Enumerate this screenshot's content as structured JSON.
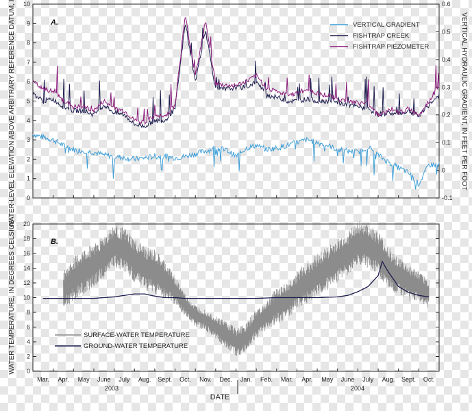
{
  "chart_data": [
    {
      "panel": "A.",
      "type": "line",
      "ylabel": "WATER-LEVEL ELEVATION ABOVE ARBITRARY REFERENCE DATUM, IN FEET",
      "y2label": "VERTICAL HYDRAULIC GRADIENT, IN FEET PER FOOT",
      "ylim": [
        0,
        10
      ],
      "y2lim": [
        -0.1,
        0.6
      ],
      "yticks": [
        "0",
        "1",
        "2",
        "3",
        "4",
        "5",
        "6",
        "7",
        "8",
        "9",
        "10"
      ],
      "y2ticks": [
        "-0.1",
        "0",
        "0.1",
        "0.2",
        "0.3",
        "0.4",
        "0.5",
        "0.6"
      ],
      "legend": [
        "VERTICAL GRADIENT",
        "FISHTRAP CREEK",
        "FISHTRAP PIEZOMETER"
      ],
      "series": [
        {
          "name": "VERTICAL GRADIENT",
          "axis": "right",
          "color": "#3f9fd8",
          "x": [
            0,
            0.5,
            1,
            1.5,
            2,
            2.5,
            3,
            3.5,
            4,
            4.5,
            5,
            5.5,
            6,
            6.5,
            7,
            7.5,
            8,
            8.5,
            9,
            9.5,
            10,
            10.5,
            11,
            11.5,
            12,
            12.5,
            13,
            13.5,
            14,
            14.5,
            15,
            15.5,
            16,
            16.5,
            17,
            17.5,
            18,
            18.5,
            19,
            19.5,
            20
          ],
          "values": [
            0.13,
            0.12,
            0.11,
            0.09,
            0.075,
            0.07,
            0.065,
            0.055,
            0.05,
            0.045,
            0.04,
            0.045,
            0.05,
            0.05,
            0.045,
            0.05,
            0.06,
            0.07,
            0.08,
            0.075,
            0.05,
            0.08,
            0.09,
            0.075,
            0.08,
            0.09,
            0.1,
            0.11,
            0.1,
            0.09,
            0.075,
            0.07,
            0.065,
            0.085,
            0.055,
            0.03,
            0.01,
            -0.01,
            -0.05,
            0.02,
            0.02
          ]
        },
        {
          "name": "FISHTRAP CREEK",
          "axis": "left",
          "color": "#1c1c4e",
          "x": [
            0,
            0.5,
            1,
            1.5,
            2,
            2.5,
            3,
            3.5,
            4,
            4.5,
            5,
            5.5,
            6,
            6.5,
            7,
            7.5,
            8,
            8.5,
            9,
            9.5,
            10,
            10.5,
            11,
            11.5,
            12,
            12.5,
            13,
            13.5,
            14,
            14.5,
            15,
            15.5,
            16,
            16.5,
            17,
            17.5,
            18,
            18.5,
            19,
            19.5,
            20
          ],
          "values": [
            5.4,
            5.0,
            5.1,
            4.7,
            4.5,
            4.5,
            4.3,
            4.8,
            4.4,
            4.3,
            3.8,
            3.7,
            4.0,
            4.0,
            4.6,
            9.0,
            6.0,
            8.7,
            5.6,
            5.6,
            5.7,
            5.7,
            6.0,
            5.3,
            5.2,
            5.0,
            5.0,
            5.1,
            5.0,
            5.0,
            4.9,
            4.8,
            4.7,
            4.6,
            4.3,
            4.4,
            4.3,
            4.5,
            4.2,
            4.8,
            5.3
          ]
        },
        {
          "name": "FISHTRAP PIEZOMETER",
          "axis": "left",
          "color": "#8a1a7a",
          "x": [
            0,
            0.5,
            1,
            1.5,
            2,
            2.5,
            3,
            3.5,
            4,
            4.5,
            5,
            5.5,
            6,
            6.5,
            7,
            7.5,
            8,
            8.5,
            9,
            9.5,
            10,
            10.5,
            11,
            11.5,
            12,
            12.5,
            13,
            13.5,
            14,
            14.5,
            15,
            15.5,
            16,
            16.5,
            17,
            17.5,
            18,
            18.5,
            19,
            19.5,
            20
          ],
          "values": [
            6.0,
            5.6,
            5.5,
            5.0,
            4.7,
            4.7,
            4.5,
            5.0,
            4.6,
            4.5,
            4.0,
            3.9,
            4.2,
            4.2,
            4.8,
            9.4,
            6.3,
            9.2,
            5.9,
            5.8,
            5.8,
            6.0,
            6.3,
            5.7,
            5.5,
            5.3,
            5.4,
            5.6,
            5.4,
            5.3,
            5.1,
            5.0,
            4.9,
            4.9,
            4.3,
            4.5,
            4.4,
            4.6,
            4.3,
            5.0,
            5.8
          ]
        }
      ]
    },
    {
      "panel": "B.",
      "type": "line",
      "ylabel": "WATER TEMPERATURE, IN DEGREES CELSIUS",
      "xlabel": "DATE",
      "ylim": [
        0,
        20
      ],
      "yticks": [
        "0",
        "2",
        "4",
        "6",
        "8",
        "10",
        "12",
        "14",
        "16",
        "18",
        "20"
      ],
      "categories": [
        "Mar.",
        "Apr.",
        "May",
        "June",
        "July",
        "Aug.",
        "Sept.",
        "Oct.",
        "Nov.",
        "Dec.",
        "Jan.",
        "Feb.",
        "Mar.",
        "Apr.",
        "May",
        "June",
        "July",
        "Aug.",
        "Sept.",
        "Oct."
      ],
      "year_labels": [
        "2003",
        "2004"
      ],
      "legend": [
        "SURFACE-WATER TEMPERATURE",
        "GROUND-WATER TEMPERATURE"
      ],
      "series": [
        {
          "name": "SURFACE-WATER TEMPERATURE",
          "color": "#8c8c8c",
          "x": [
            1.5,
            2,
            2.5,
            3,
            3.5,
            4,
            4.5,
            5,
            5.5,
            6,
            6.5,
            7,
            7.5,
            8,
            8.5,
            9,
            9.5,
            10,
            10.5,
            11,
            11.5,
            12,
            12.5,
            13,
            13.5,
            14,
            14.5,
            15,
            15.5,
            16,
            16.5,
            17,
            17.5,
            18,
            18.5,
            19,
            19.5
          ],
          "values": [
            11,
            12.5,
            13.5,
            14.5,
            15.5,
            17,
            16.5,
            15,
            14,
            13.5,
            12.5,
            11,
            9,
            7.5,
            7,
            6,
            5,
            4,
            4.5,
            6.5,
            7.5,
            9,
            9.5,
            11,
            12,
            13,
            14,
            15,
            16,
            17.5,
            17,
            16,
            14,
            13,
            12,
            11.5,
            10.5
          ],
          "amplitude": [
            2.5,
            3,
            3,
            3,
            3,
            3,
            3,
            3,
            3,
            3,
            2.5,
            2,
            1.5,
            1.5,
            1.5,
            1.5,
            2,
            2,
            2,
            2,
            2,
            2.5,
            2.5,
            2.5,
            3,
            3,
            3,
            3,
            3,
            3,
            3,
            3,
            3,
            2.5,
            2.5,
            2,
            2
          ]
        },
        {
          "name": "GROUND-WATER TEMPERATURE",
          "color": "#1c1c4e",
          "x": [
            0.5,
            1,
            2,
            3,
            4,
            5,
            5.5,
            6,
            6.5,
            7,
            7.5,
            8,
            9,
            10,
            11,
            12,
            13,
            14,
            15,
            15.5,
            16,
            16.5,
            17,
            17.2,
            17.5,
            18,
            18.5,
            19,
            19.5
          ],
          "values": [
            9.9,
            9.9,
            9.9,
            9.9,
            10.1,
            10.5,
            10.5,
            10.2,
            10.0,
            10.0,
            9.9,
            9.9,
            9.9,
            9.9,
            9.9,
            10.0,
            10.0,
            10.0,
            10.1,
            10.3,
            10.8,
            11.5,
            13.0,
            14.9,
            13.5,
            11.5,
            10.7,
            10.3,
            10.1
          ]
        }
      ]
    }
  ]
}
